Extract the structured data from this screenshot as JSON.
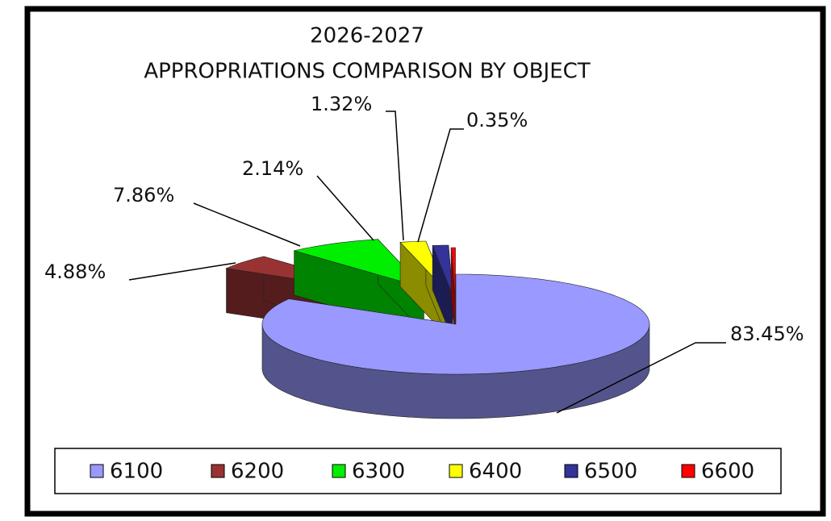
{
  "chart_data": {
    "type": "pie3d",
    "title": "2026-2027",
    "subtitle": "APPROPRIATIONS COMPARISON BY OBJECT",
    "categories": [
      "6100",
      "6200",
      "6300",
      "6400",
      "6500",
      "6600"
    ],
    "values": [
      83.45,
      4.88,
      7.86,
      2.14,
      1.32,
      0.35
    ],
    "value_labels": [
      "83.45%",
      "4.88%",
      "7.86%",
      "2.14%",
      "1.32%",
      "0.35%"
    ],
    "colors": [
      "#9999ff",
      "#993333",
      "#00ee00",
      "#ffff00",
      "#333399",
      "#ff0000"
    ],
    "legend": "bottom"
  }
}
